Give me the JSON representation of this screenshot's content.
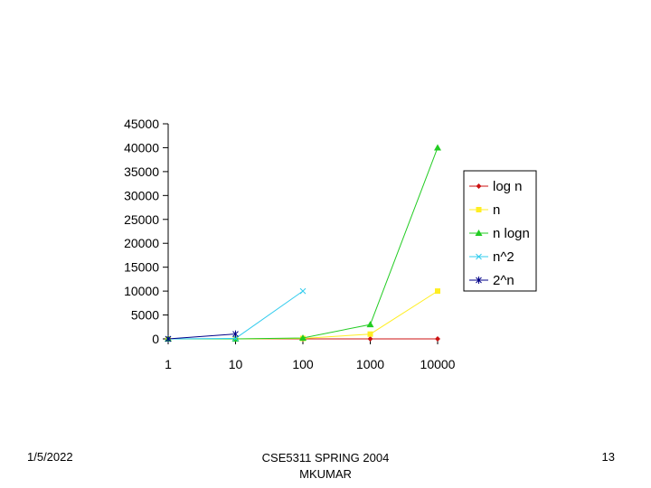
{
  "chart_data": {
    "type": "line",
    "categories": [
      "1",
      "10",
      "100",
      "1000",
      "10000"
    ],
    "ylim": [
      0,
      45000
    ],
    "yticks": [
      "0",
      "5000",
      "10000",
      "15000",
      "20000",
      "25000",
      "30000",
      "35000",
      "40000",
      "45000"
    ],
    "grid": false,
    "legend": "right",
    "series": [
      {
        "name": "log n",
        "color": "#cc1111",
        "marker": "diamond",
        "values": [
          0,
          1,
          2,
          3,
          4
        ]
      },
      {
        "name": "n",
        "color": "#ffee22",
        "marker": "square",
        "values": [
          1,
          10,
          100,
          1000,
          10000
        ]
      },
      {
        "name": "n logn",
        "color": "#22cc22",
        "marker": "triangle",
        "values": [
          0,
          10,
          200,
          3000,
          40000
        ]
      },
      {
        "name": "n^2",
        "color": "#33ccee",
        "marker": "x",
        "values": [
          1,
          100,
          10000,
          null,
          null
        ]
      },
      {
        "name": "2^n",
        "color": "#000088",
        "marker": "star",
        "values": [
          2,
          1024,
          null,
          null,
          null
        ]
      }
    ]
  },
  "footer": {
    "date": "1/5/2022",
    "course": "CSE5311 SPRING 2004",
    "author": "MKUMAR",
    "page": "13"
  }
}
